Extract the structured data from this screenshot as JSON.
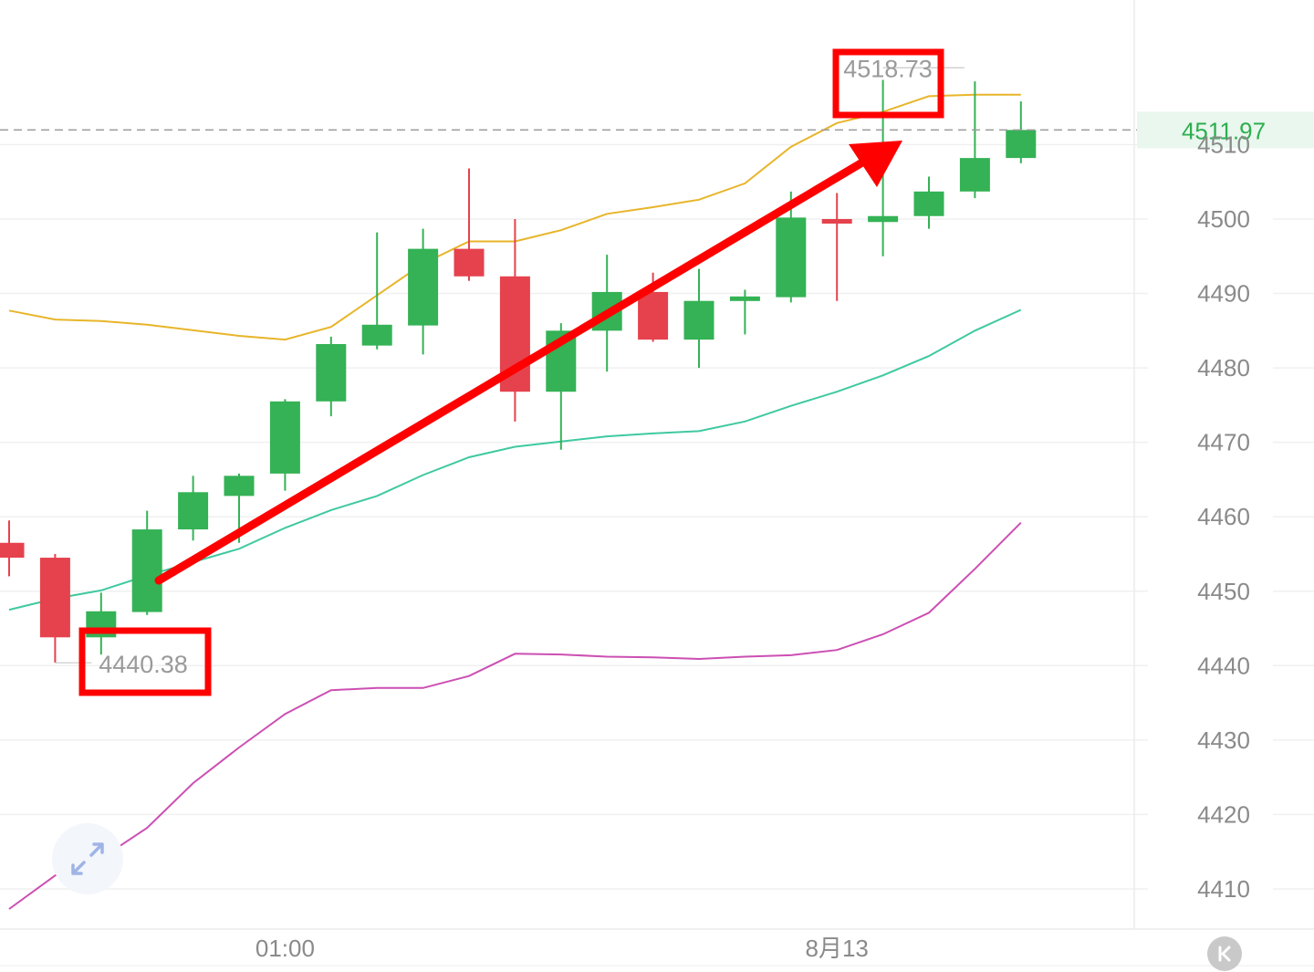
{
  "chart_data": {
    "type": "candlestick",
    "y_axis": {
      "ticks": [
        4510,
        4500,
        4490,
        4480,
        4470,
        4460,
        4450,
        4440,
        4430,
        4420,
        4410
      ],
      "position": "right"
    },
    "x_axis": {
      "labels": [
        {
          "text": "01:00",
          "at_candle": 6
        },
        {
          "text": "8月13",
          "at_candle": 18
        }
      ]
    },
    "current_price": {
      "value": 4511.97,
      "label": "4511.97",
      "color": "#2eae4f"
    },
    "extremes": {
      "high": {
        "value": 4518.73,
        "label": "4518.73",
        "at_candle": 19
      },
      "low": {
        "value": 4440.38,
        "label": "4440.38",
        "at_candle": 1
      }
    },
    "colors": {
      "up": "#34b255",
      "down": "#e5424d",
      "upper_band": "#e8b52a",
      "middle_band": "#3fc9a0",
      "lower_band": "#cc4fb3",
      "annotation": "#ff0000"
    },
    "candles": [
      {
        "o": 4456.5,
        "h": 4459.5,
        "l": 4452.0,
        "c": 4454.5
      },
      {
        "o": 4454.5,
        "h": 4455.0,
        "l": 4440.4,
        "c": 4443.8
      },
      {
        "o": 4443.8,
        "h": 4449.8,
        "l": 4441.5,
        "c": 4447.3
      },
      {
        "o": 4447.2,
        "h": 4460.8,
        "l": 4446.8,
        "c": 4458.3
      },
      {
        "o": 4458.3,
        "h": 4465.5,
        "l": 4456.8,
        "c": 4463.3
      },
      {
        "o": 4462.8,
        "h": 4465.8,
        "l": 4456.5,
        "c": 4465.5
      },
      {
        "o": 4465.8,
        "h": 4475.8,
        "l": 4463.5,
        "c": 4475.5
      },
      {
        "o": 4475.5,
        "h": 4484.2,
        "l": 4473.5,
        "c": 4483.2
      },
      {
        "o": 4483.0,
        "h": 4498.2,
        "l": 4482.5,
        "c": 4485.8
      },
      {
        "o": 4485.7,
        "h": 4498.7,
        "l": 4481.8,
        "c": 4496.0
      },
      {
        "o": 4496.0,
        "h": 4506.8,
        "l": 4491.7,
        "c": 4492.3
      },
      {
        "o": 4492.3,
        "h": 4500.0,
        "l": 4472.8,
        "c": 4476.8
      },
      {
        "o": 4476.8,
        "h": 4486.0,
        "l": 4469.0,
        "c": 4485.0
      },
      {
        "o": 4485.0,
        "h": 4495.2,
        "l": 4479.5,
        "c": 4490.2
      },
      {
        "o": 4490.2,
        "h": 4492.8,
        "l": 4483.5,
        "c": 4483.8
      },
      {
        "o": 4483.8,
        "h": 4493.3,
        "l": 4480.0,
        "c": 4489.0
      },
      {
        "o": 4489.0,
        "h": 4490.5,
        "l": 4484.5,
        "c": 4489.6
      },
      {
        "o": 4489.5,
        "h": 4503.7,
        "l": 4488.8,
        "c": 4500.2
      },
      {
        "o": 4500.0,
        "h": 4503.5,
        "l": 4489.0,
        "c": 4499.7
      },
      {
        "o": 4499.6,
        "h": 4518.7,
        "l": 4495.0,
        "c": 4500.4
      },
      {
        "o": 4500.4,
        "h": 4505.7,
        "l": 4498.7,
        "c": 4503.7
      },
      {
        "o": 4503.7,
        "h": 4518.5,
        "l": 4502.8,
        "c": 4508.2
      },
      {
        "o": 4508.2,
        "h": 4515.8,
        "l": 4507.5,
        "c": 4511.97
      }
    ],
    "bands": {
      "upper": [
        4487.7,
        4486.5,
        4486.3,
        4485.8,
        null,
        4484.3,
        4483.8,
        4485.5,
        null,
        4494.0,
        4497.0,
        4497.0,
        4498.5,
        4500.7,
        4501.6,
        4502.6,
        4504.8,
        4509.7,
        4512.9,
        4514.4,
        4516.5,
        4516.7,
        4516.7
      ],
      "middle": [
        4447.5,
        4449.0,
        4450.1,
        4452.1,
        null,
        4455.7,
        4458.5,
        4460.9,
        4462.8,
        4465.6,
        4468.0,
        4469.4,
        4470.1,
        4470.8,
        4471.2,
        4471.5,
        4472.8,
        4474.9,
        4476.8,
        4479.0,
        4481.6,
        4485.0,
        4487.8
      ],
      "lower": [
        4407.3,
        4411.8,
        4414.1,
        4418.2,
        4424.2,
        4429.0,
        4433.5,
        4436.7,
        4437.0,
        4437.0,
        4438.6,
        4441.6,
        4441.5,
        4441.2,
        4441.1,
        4440.9,
        4441.2,
        4441.4,
        4442.1,
        4444.2,
        4447.1,
        4453.0,
        4459.2
      ]
    }
  }
}
